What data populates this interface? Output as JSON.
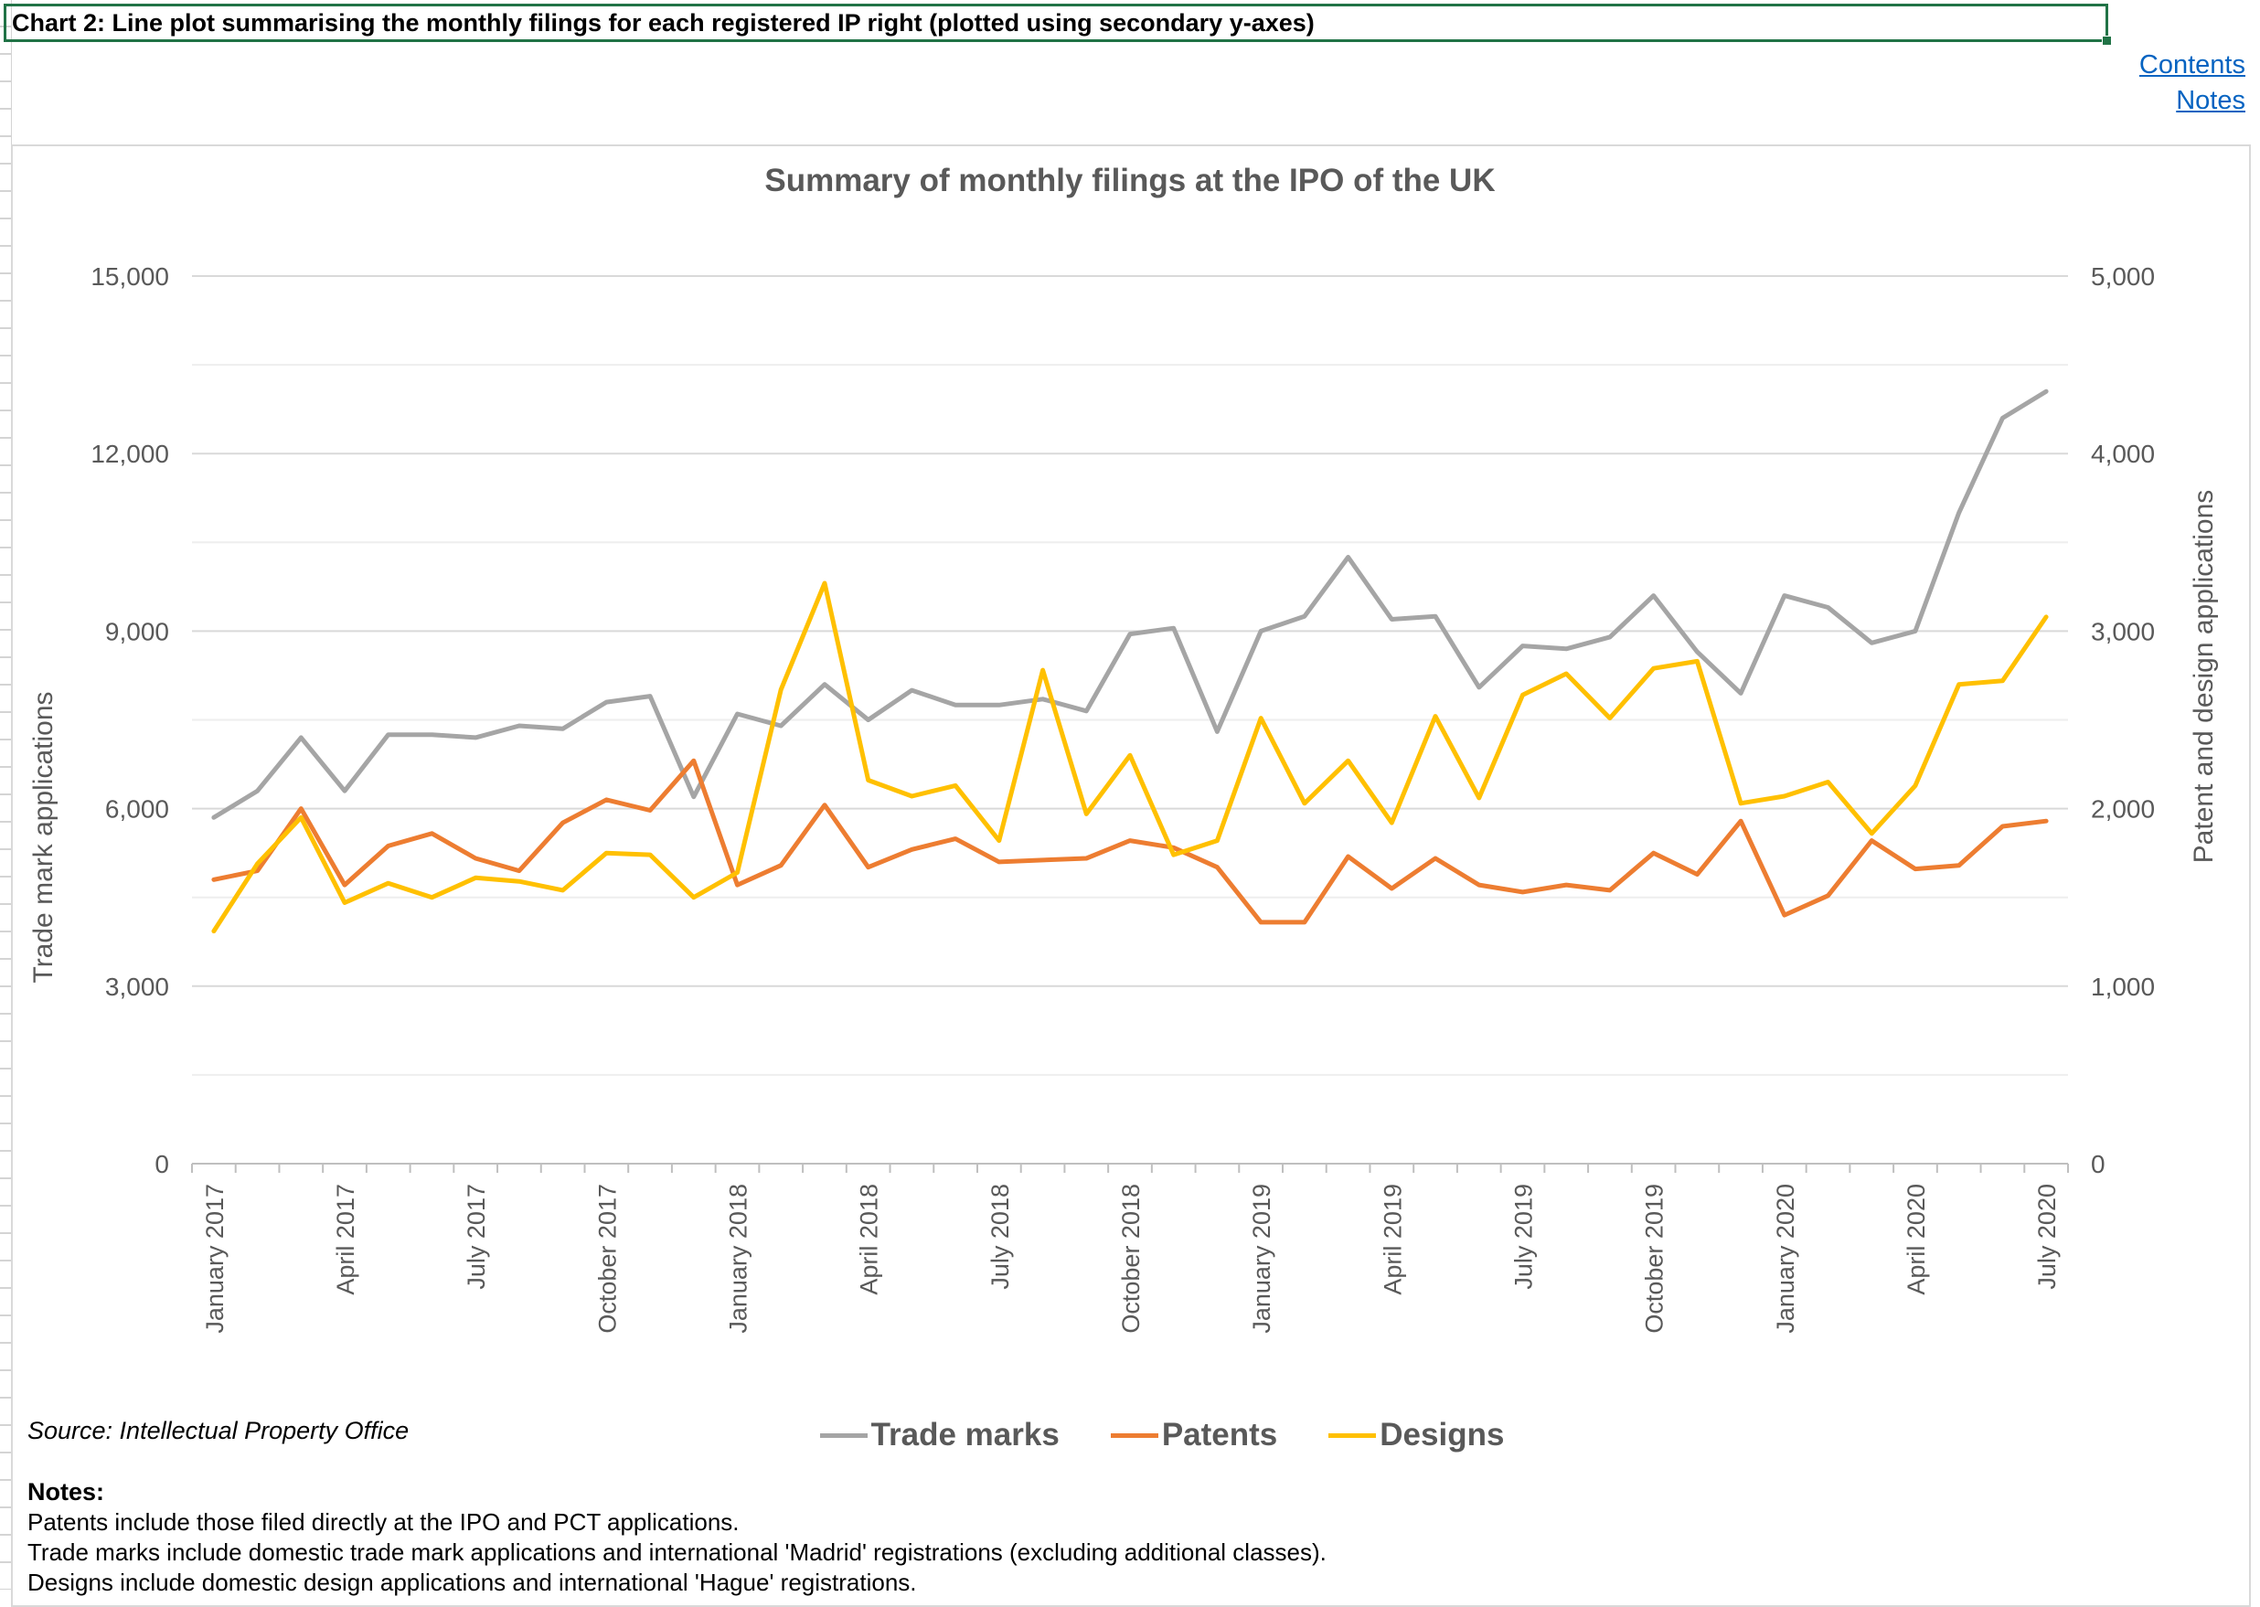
{
  "sheet": {
    "title": "Chart 2: Line plot summarising the monthly filings for each registered IP right (plotted using secondary y-axes)",
    "links": {
      "contents": "Contents",
      "notes": "Notes"
    }
  },
  "chart_data": {
    "type": "line",
    "title": "Summary of monthly filings at the IPO of the UK",
    "ylabel": "Trade mark applications",
    "ylabel_secondary": "Patent and design applications",
    "ylim": [
      0,
      15000
    ],
    "ylim_secondary": [
      0,
      5000
    ],
    "yticks": [
      0,
      3000,
      6000,
      9000,
      12000,
      15000
    ],
    "yticks_labels": [
      "0",
      "3,000",
      "6,000",
      "9,000",
      "12,000",
      "15,000"
    ],
    "yticks_secondary": [
      0,
      1000,
      2000,
      3000,
      4000,
      5000
    ],
    "yticks_secondary_labels": [
      "0",
      "1,000",
      "2,000",
      "3,000",
      "4,000",
      "5,000"
    ],
    "grid": true,
    "legend_position": "bottom",
    "x": [
      "January 2017",
      "February 2017",
      "March 2017",
      "April 2017",
      "May 2017",
      "June 2017",
      "July 2017",
      "August 2017",
      "September 2017",
      "October 2017",
      "November 2017",
      "December 2017",
      "January 2018",
      "February 2018",
      "March 2018",
      "April 2018",
      "May 2018",
      "June 2018",
      "July 2018",
      "August 2018",
      "September 2018",
      "October 2018",
      "November 2018",
      "December 2018",
      "January 2019",
      "February 2019",
      "March 2019",
      "April 2019",
      "May 2019",
      "June 2019",
      "July 2019",
      "August 2019",
      "September 2019",
      "October 2019",
      "November 2019",
      "December 2019",
      "January 2020",
      "February 2020",
      "March 2020",
      "April 2020",
      "May 2020",
      "June 2020",
      "July 2020"
    ],
    "x_tick_labels": [
      {
        "index": 0,
        "label": "January 2017"
      },
      {
        "index": 3,
        "label": "April 2017"
      },
      {
        "index": 6,
        "label": "July 2017"
      },
      {
        "index": 9,
        "label": "October 2017"
      },
      {
        "index": 12,
        "label": "January 2018"
      },
      {
        "index": 15,
        "label": "April 2018"
      },
      {
        "index": 18,
        "label": "July 2018"
      },
      {
        "index": 21,
        "label": "October 2018"
      },
      {
        "index": 24,
        "label": "January 2019"
      },
      {
        "index": 27,
        "label": "April 2019"
      },
      {
        "index": 30,
        "label": "July 2019"
      },
      {
        "index": 33,
        "label": "October 2019"
      },
      {
        "index": 36,
        "label": "January 2020"
      },
      {
        "index": 39,
        "label": "April 2020"
      },
      {
        "index": 42,
        "label": "July 2020"
      }
    ],
    "series": [
      {
        "name": "Trade marks",
        "axis": "primary",
        "color": "#a5a5a5",
        "values": [
          5850,
          6300,
          7200,
          6300,
          7250,
          7250,
          7200,
          7400,
          7350,
          7800,
          7900,
          6200,
          7600,
          7400,
          8100,
          7500,
          8000,
          7750,
          7750,
          7850,
          7650,
          8950,
          9050,
          7300,
          9000,
          9250,
          10250,
          9200,
          9250,
          8050,
          8750,
          8700,
          8900,
          9600,
          8650,
          7950,
          9600,
          9400,
          8800,
          9000,
          11000,
          12600,
          13050
        ]
      },
      {
        "name": "Patents",
        "axis": "secondary",
        "color": "#ed7d31",
        "values": [
          1600,
          1650,
          2000,
          1570,
          1790,
          1860,
          1720,
          1650,
          1920,
          2050,
          1990,
          2270,
          1570,
          1680,
          2020,
          1670,
          1770,
          1830,
          1700,
          1710,
          1720,
          1820,
          1780,
          1670,
          1360,
          1360,
          1730,
          1550,
          1720,
          1570,
          1530,
          1570,
          1540,
          1750,
          1630,
          1930,
          1400,
          1510,
          1820,
          1660,
          1680,
          1900,
          1930
        ]
      },
      {
        "name": "Designs",
        "axis": "secondary",
        "color": "#ffc000",
        "values": [
          1310,
          1690,
          1950,
          1470,
          1580,
          1500,
          1610,
          1590,
          1540,
          1750,
          1740,
          1500,
          1640,
          2670,
          3270,
          2160,
          2070,
          2130,
          1820,
          2780,
          1970,
          2300,
          1740,
          1820,
          2510,
          2030,
          2270,
          1920,
          2520,
          2060,
          2640,
          2760,
          2510,
          2790,
          2830,
          2030,
          2070,
          2150,
          1860,
          2130,
          2700,
          2720,
          3080
        ]
      }
    ]
  },
  "source": "Source: Intellectual Property Office",
  "notes": {
    "heading": "Notes:",
    "lines": [
      "Patents include those filed directly at the IPO and PCT applications.",
      "Trade marks include domestic trade mark applications and international 'Madrid' registrations (excluding additional classes).",
      "Designs include domestic design applications and international 'Hague' registrations."
    ]
  }
}
